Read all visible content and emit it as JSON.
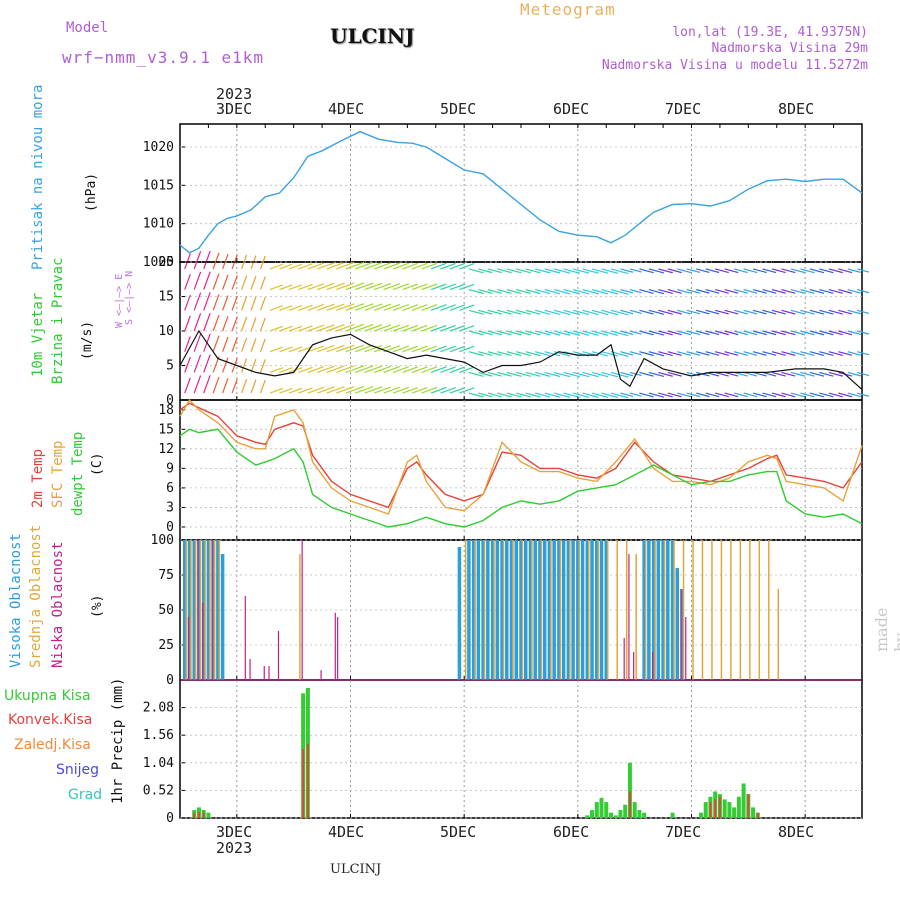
{
  "header": {
    "model_label": "Model",
    "model_name": "wrf−nmm_v3.9.1  e1km",
    "station": "ULCINJ",
    "meteogram": "Meteogram",
    "lonlat": "lon,lat (19.3E, 41.9375N)",
    "elev": "Nadmorska Visina 29m",
    "elev_model": "Nadmorska Visina u modelu 11.5272m",
    "footer_station": "ULCINJ",
    "watermark": "made by Angel"
  },
  "time_axis": {
    "year": "2023",
    "days": [
      "3DEC",
      "4DEC",
      "5DEC",
      "6DEC",
      "7DEC",
      "8DEC"
    ],
    "day_positions_hours": [
      0,
      24,
      48,
      72,
      96,
      120
    ],
    "range_hours": [
      -12,
      132
    ]
  },
  "panels": {
    "pressure": {
      "label1": "Pritisak na nivou mora",
      "unit": "(hPa)",
      "ticks": [
        "1005",
        "1010",
        "1015",
        "1020"
      ]
    },
    "wind": {
      "label1": "10m Vjetar",
      "label2": "Brzina i Pravac",
      "unit": "(m/s)",
      "ticks": [
        "0",
        "5",
        "10",
        "15",
        "20"
      ],
      "compass": "W <—|—> E",
      "compass2": "S <—|—> N"
    },
    "temp": {
      "label1": "2m Temp",
      "label2": "SFC Temp",
      "label3": "dewpt Temp",
      "unit": "(C)",
      "ticks": [
        "0",
        "3",
        "6",
        "9",
        "12",
        "15",
        "18"
      ]
    },
    "cloud": {
      "label1": "Visoka Oblacnost",
      "label2": "Srednja Oblacnost",
      "label3": "Niska Oblacnost",
      "unit": "(%)",
      "ticks": [
        "0",
        "25",
        "50",
        "75",
        "100"
      ]
    },
    "precip": {
      "unit": "1hr Precip (mm)",
      "ticks": [
        "0",
        "0.52",
        "1.04",
        "1.56",
        "2.08"
      ],
      "legend": [
        "Ukupna Kisa",
        "Konvek.Kisa",
        "Zaledj.Kisa",
        "Snijeg",
        "Grad"
      ]
    }
  },
  "colors": {
    "pressure": "#3aa3e0",
    "t2m": "#e8413c",
    "tsfc": "#e8a23a",
    "dewpt": "#2ecc30",
    "high_cloud": "#2a9ee0",
    "mid_cloud": "#e0a838",
    "low_cloud": "#c0208a",
    "total_rain": "#33cc33",
    "conv_rain": "#e84040",
    "freezing": "#f08a3a",
    "snow": "#4a4ae0",
    "hail": "#30c8b8"
  },
  "chart_data": [
    {
      "type": "line",
      "ylabel": "Pritisak na nivou mora (hPa)",
      "ylim": [
        1005,
        1023
      ],
      "series": [
        {
          "x": [
            -12,
            -10,
            -8,
            -6,
            -4,
            -2,
            0,
            3,
            6,
            9,
            12,
            15,
            18,
            22,
            26,
            30,
            34,
            37,
            40,
            44,
            48,
            52,
            56,
            60,
            64,
            68,
            72,
            76,
            79,
            82,
            84,
            86,
            88,
            92,
            96,
            100,
            104,
            108,
            112,
            116,
            120,
            124,
            128,
            132
          ],
          "values": [
            1007.2,
            1006.2,
            1006.8,
            1008.5,
            1010.0,
            1010.7,
            1011.0,
            1011.8,
            1013.5,
            1014.0,
            1016.0,
            1018.8,
            1019.5,
            1020.8,
            1022.0,
            1021.0,
            1020.6,
            1020.5,
            1020.0,
            1018.5,
            1017.0,
            1016.5,
            1014.5,
            1012.5,
            1010.5,
            1009.0,
            1008.5,
            1008.3,
            1007.5,
            1008.5,
            1009.5,
            1010.5,
            1011.5,
            1012.5,
            1012.6,
            1012.3,
            1013.0,
            1014.5,
            1015.6,
            1015.8,
            1015.5,
            1015.8,
            1015.8,
            1014.0
          ]
        }
      ]
    },
    {
      "type": "line",
      "ylabel": "10m Vjetar Brzina i Pravac (m/s)",
      "ylim": [
        0,
        20
      ],
      "series": [
        {
          "x": [
            -12,
            -8,
            -6,
            -4,
            0,
            4,
            8,
            12,
            16,
            20,
            24,
            28,
            32,
            36,
            40,
            44,
            48,
            52,
            56,
            60,
            64,
            68,
            72,
            76,
            79,
            81,
            83,
            86,
            90,
            96,
            100,
            106,
            112,
            118,
            124,
            128,
            132
          ],
          "values": [
            5,
            10,
            8,
            6,
            5,
            4,
            3.5,
            4,
            8,
            9,
            9.5,
            8,
            7,
            6,
            6.5,
            6,
            5.5,
            4,
            5,
            5,
            5.5,
            7,
            6.5,
            6.5,
            8,
            3,
            2,
            6,
            4.5,
            3.5,
            4,
            4,
            4,
            4.5,
            4.5,
            4,
            1.5
          ]
        }
      ]
    },
    {
      "type": "line",
      "ylabel": "Temp (C)",
      "ylim": [
        -2,
        19.5
      ],
      "series": [
        {
          "name": "2m Temp",
          "x": [
            -12,
            -10,
            -8,
            -4,
            0,
            4,
            6,
            8,
            12,
            14,
            16,
            20,
            24,
            28,
            32,
            36,
            38,
            40,
            44,
            48,
            52,
            56,
            60,
            64,
            68,
            72,
            76,
            80,
            84,
            88,
            92,
            96,
            100,
            104,
            108,
            112,
            114,
            116,
            120,
            124,
            128,
            132
          ],
          "values": [
            18,
            19,
            18.3,
            17,
            14,
            13,
            12.7,
            15,
            16,
            15.5,
            11,
            7,
            5,
            4,
            3,
            9,
            10,
            8,
            5,
            4,
            5,
            11.5,
            11,
            9,
            9,
            8,
            7.5,
            9,
            13,
            10,
            8,
            7.5,
            7,
            8,
            9,
            10.5,
            11,
            8,
            7.5,
            7,
            6,
            10
          ]
        },
        {
          "name": "SFC Temp",
          "x": [
            -12,
            -10,
            -8,
            -4,
            0,
            4,
            6,
            8,
            12,
            14,
            16,
            20,
            24,
            28,
            32,
            36,
            38,
            40,
            44,
            48,
            52,
            56,
            60,
            64,
            68,
            72,
            76,
            80,
            84,
            88,
            92,
            96,
            100,
            104,
            108,
            112,
            114,
            116,
            120,
            124,
            128,
            132
          ],
          "values": [
            17,
            19.5,
            18,
            16,
            13,
            12,
            12,
            17,
            18,
            16,
            10,
            6,
            4,
            3,
            2,
            10,
            11,
            7,
            3,
            2.5,
            5,
            13,
            10,
            8.5,
            8.5,
            7.5,
            7,
            10,
            13.5,
            9,
            7,
            7,
            6.5,
            7.5,
            10,
            11,
            10.5,
            7,
            6.5,
            6,
            4,
            12.5
          ]
        },
        {
          "name": "dewpt Temp",
          "x": [
            -12,
            -10,
            -8,
            -4,
            0,
            4,
            6,
            8,
            12,
            14,
            16,
            20,
            24,
            28,
            32,
            36,
            40,
            44,
            48,
            52,
            56,
            60,
            64,
            68,
            72,
            76,
            80,
            84,
            88,
            92,
            96,
            100,
            104,
            108,
            112,
            114,
            116,
            120,
            124,
            128,
            132
          ],
          "values": [
            14,
            15,
            14.5,
            15,
            11.5,
            9.5,
            10,
            10.5,
            12,
            10,
            5,
            3,
            2,
            1,
            0,
            0.5,
            1.5,
            0.5,
            0,
            1,
            3,
            4,
            3.5,
            4,
            5.5,
            6,
            6.5,
            8,
            9.5,
            8,
            6.5,
            7,
            7,
            8,
            8.5,
            8.5,
            4,
            2,
            1.5,
            2,
            0.5
          ]
        }
      ]
    },
    {
      "type": "bar",
      "ylabel": "Oblacnost (%)",
      "ylim": [
        0,
        100
      ],
      "series": [
        {
          "name": "Visoka Oblacnost",
          "x": [
            -11,
            -10,
            -9,
            -8,
            -7,
            -6,
            -5,
            -4,
            -3,
            47,
            49,
            50,
            51,
            52,
            53,
            54,
            55,
            56,
            57,
            58,
            59,
            60,
            61,
            62,
            63,
            64,
            65,
            66,
            67,
            68,
            69,
            70,
            71,
            72,
            73,
            74,
            75,
            76,
            77,
            78,
            86,
            87,
            88,
            89,
            90,
            91,
            92,
            93,
            94
          ],
          "values": [
            100,
            100,
            100,
            100,
            100,
            100,
            100,
            100,
            90,
            95,
            100,
            100,
            100,
            100,
            100,
            100,
            100,
            100,
            100,
            100,
            100,
            100,
            100,
            100,
            100,
            100,
            100,
            100,
            100,
            100,
            100,
            100,
            100,
            100,
            100,
            100,
            100,
            100,
            100,
            100,
            100,
            100,
            100,
            100,
            100,
            100,
            100,
            80,
            65
          ]
        },
        {
          "name": "Srednja Oblacnost",
          "x": [
            -11,
            -10,
            -9,
            -8,
            -7,
            -6,
            -5,
            -4,
            13,
            48,
            50,
            52,
            54,
            56,
            58,
            60,
            62,
            64,
            66,
            68,
            70,
            72,
            74,
            76,
            78,
            80,
            82,
            84,
            86,
            88,
            90,
            92,
            94,
            96,
            98,
            100,
            102,
            104,
            106,
            108,
            110,
            112,
            114
          ],
          "values": [
            100,
            100,
            100,
            100,
            100,
            100,
            100,
            100,
            90,
            100,
            100,
            100,
            100,
            100,
            100,
            100,
            100,
            100,
            100,
            100,
            100,
            100,
            100,
            100,
            100,
            100,
            100,
            90,
            100,
            100,
            100,
            100,
            100,
            100,
            100,
            100,
            100,
            100,
            100,
            100,
            100,
            100,
            65
          ]
        },
        {
          "name": "Niska Oblacnost",
          "x": [
            -10,
            -8,
            -7,
            -5,
            2,
            3,
            6,
            7,
            9,
            14,
            18,
            21,
            21.5,
            82,
            83,
            84,
            88,
            94,
            95
          ],
          "values": [
            45,
            100,
            55,
            100,
            60,
            15,
            10,
            10,
            35,
            100,
            7,
            48,
            45,
            30,
            90,
            20,
            20,
            65,
            45
          ]
        }
      ]
    },
    {
      "type": "bar",
      "ylabel": "1hr Precip (mm)",
      "ylim": [
        0,
        2.6
      ],
      "series": [
        {
          "name": "Ukupna Kisa",
          "x": [
            -9,
            -8,
            -7,
            -6,
            14,
            15,
            74,
            75,
            76,
            77,
            78,
            79,
            80,
            81,
            82,
            83,
            84,
            85,
            86,
            92,
            98,
            99,
            100,
            101,
            102,
            103,
            104,
            105,
            106,
            107,
            108,
            109,
            110
          ],
          "values": [
            0.15,
            0.2,
            0.15,
            0.1,
            2.35,
            2.45,
            0.05,
            0.15,
            0.3,
            0.38,
            0.3,
            0.1,
            0.05,
            0.15,
            0.25,
            1.04,
            0.3,
            0.15,
            0.1,
            0.1,
            0.1,
            0.3,
            0.4,
            0.5,
            0.45,
            0.35,
            0.3,
            0.2,
            0.4,
            0.65,
            0.45,
            0.2,
            0.1
          ]
        },
        {
          "name": "Konvek.Kisa",
          "x": [
            -9,
            -8,
            -7,
            14,
            15,
            83,
            100,
            101,
            102,
            108,
            110
          ],
          "values": [
            0.1,
            0.12,
            0.1,
            1.3,
            1.4,
            0.5,
            0.3,
            0.35,
            0.4,
            0.45,
            0.1
          ]
        }
      ]
    }
  ]
}
